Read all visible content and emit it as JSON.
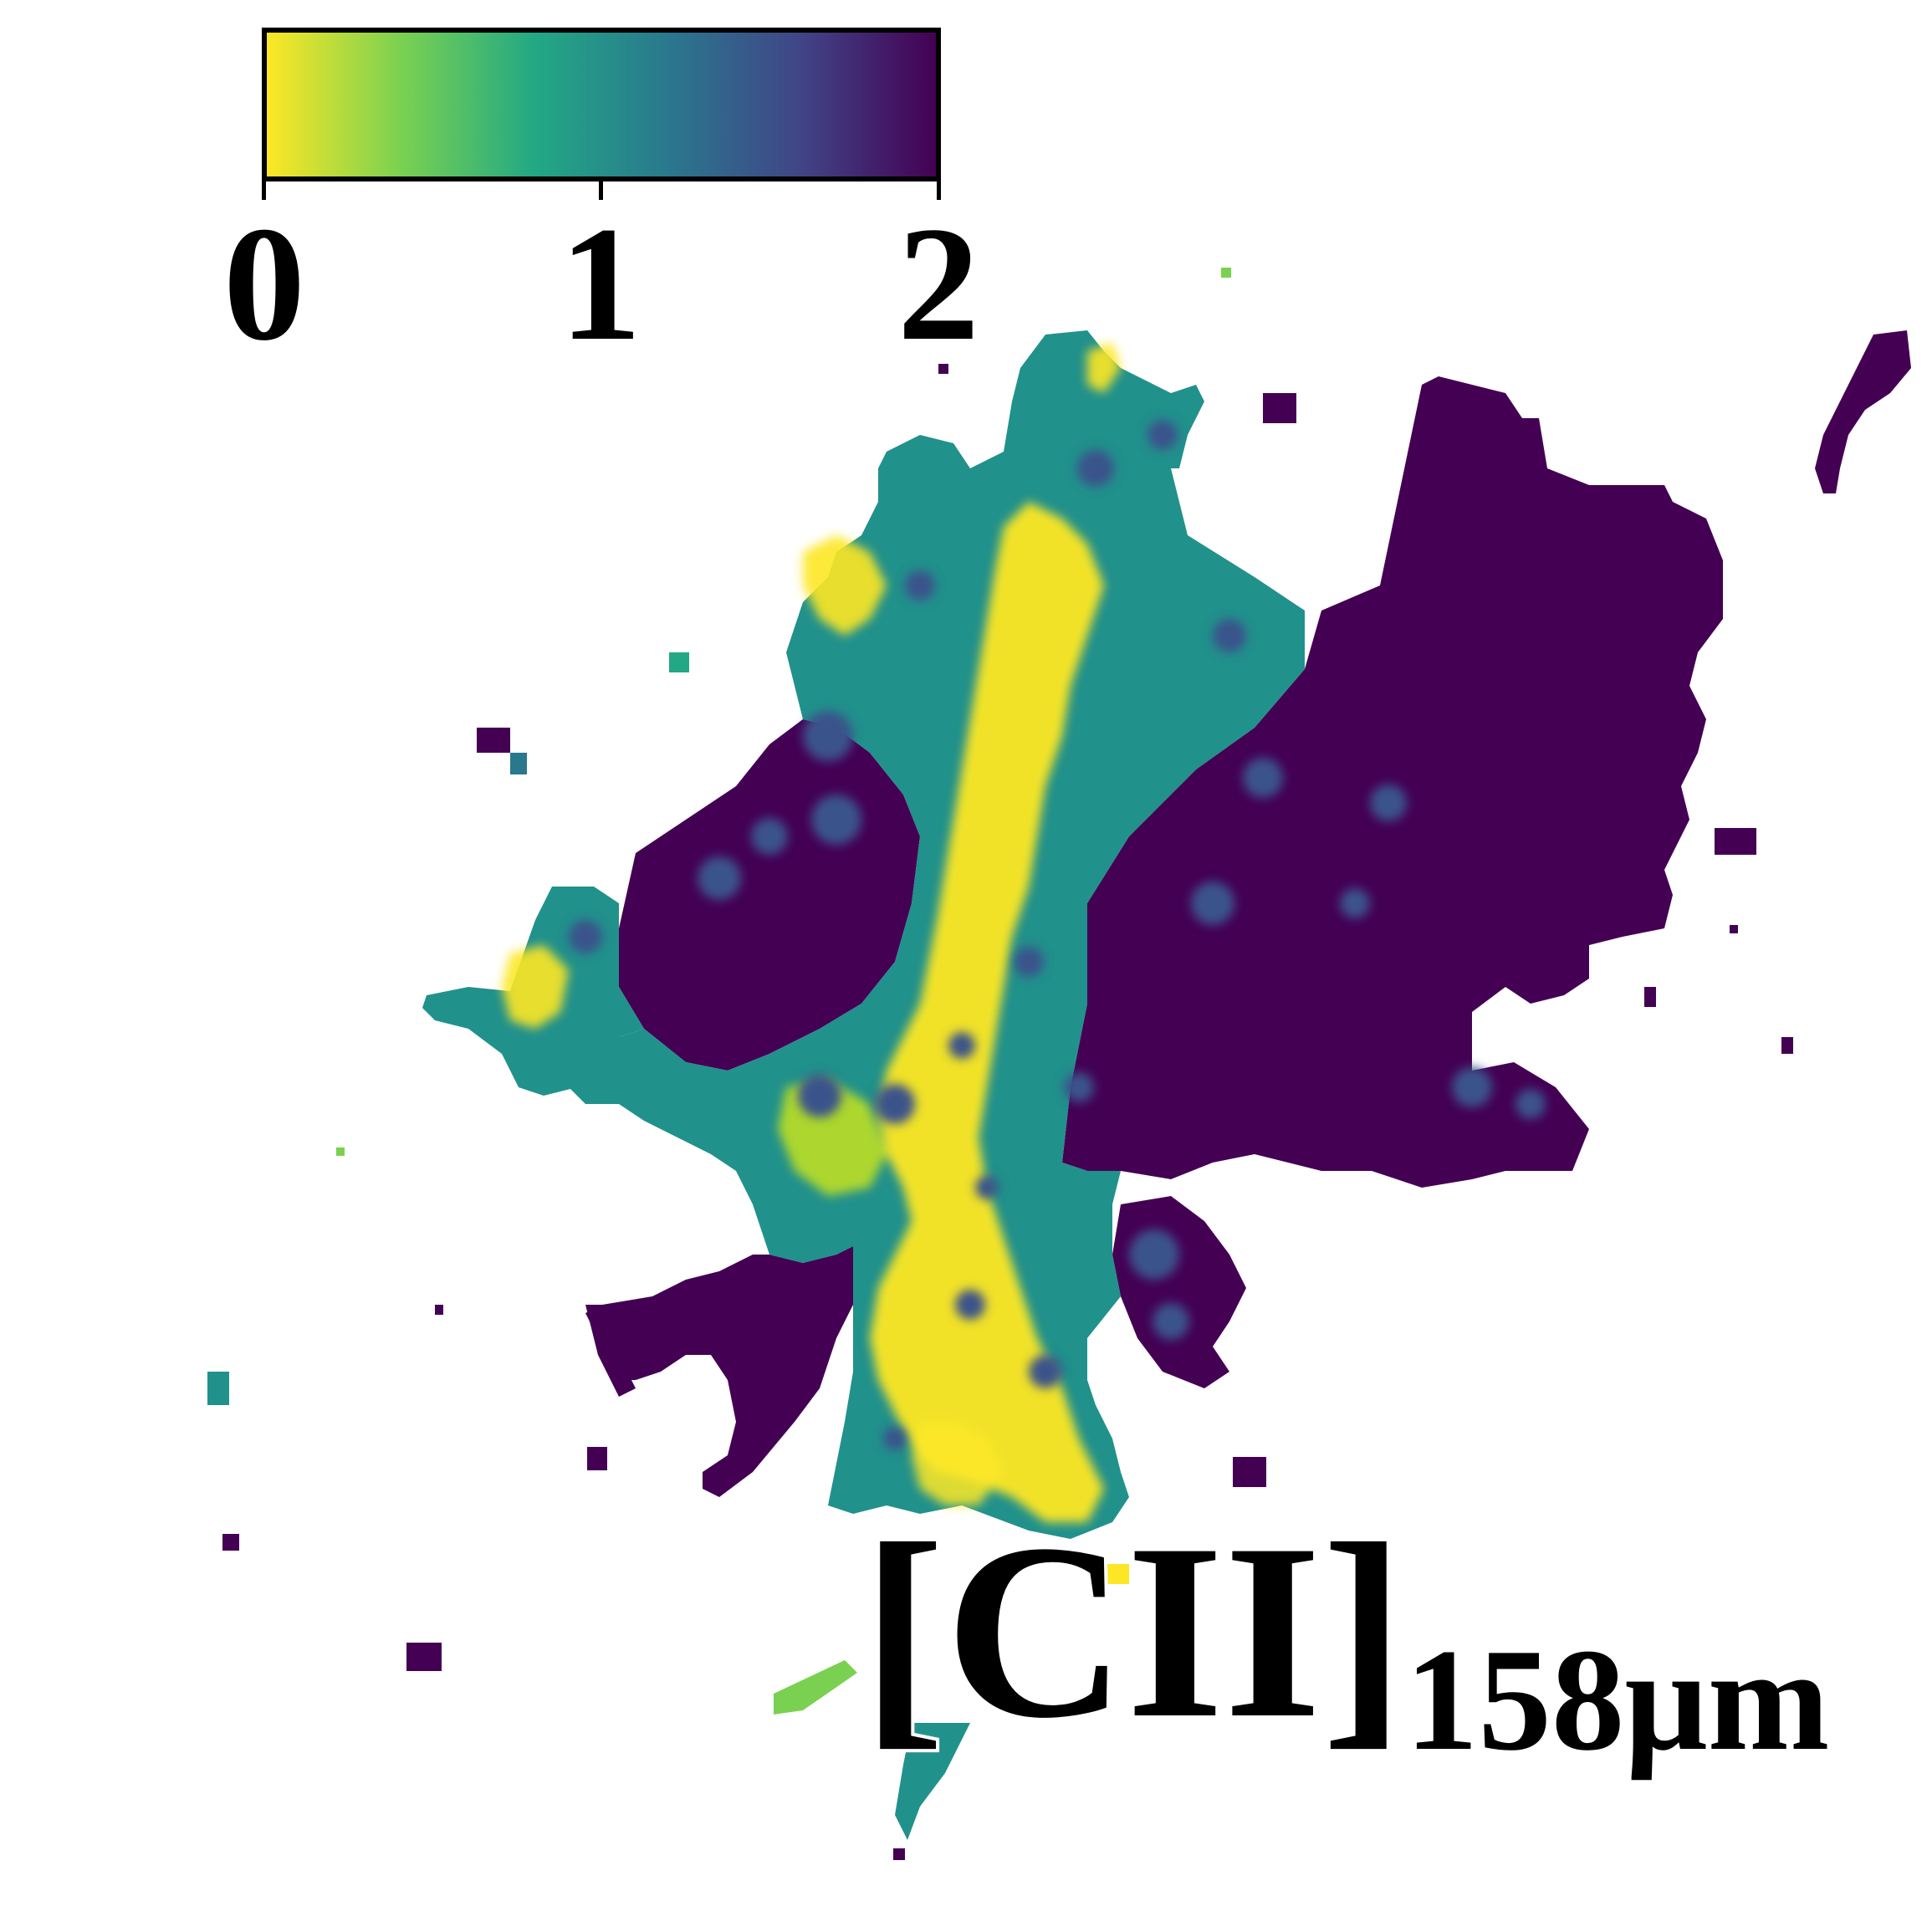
{
  "figure": {
    "label": {
      "main": "[CII]",
      "subscript": "158μm"
    }
  },
  "colorbar": {
    "colormap": "viridis (reversed)",
    "stops": [
      "#fde725",
      "#7ad151",
      "#22a884",
      "#2a788e",
      "#414487",
      "#440154"
    ],
    "ticks": [
      {
        "value": 0,
        "label": "0"
      },
      {
        "value": 1,
        "label": "1"
      },
      {
        "value": 2,
        "label": "2"
      }
    ],
    "range": [
      0,
      2
    ]
  },
  "colors": {
    "low": "#fde725",
    "mid": "#21918c",
    "high": "#440154",
    "background": "#ffffff"
  }
}
